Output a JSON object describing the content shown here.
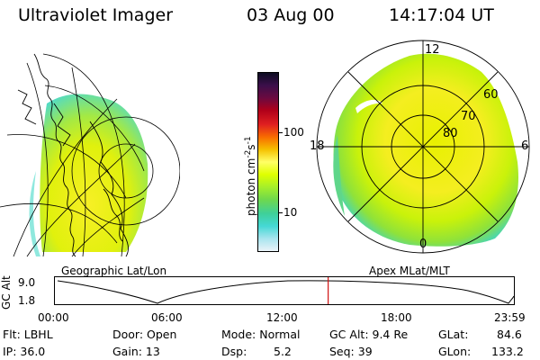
{
  "header": {
    "title": "Ultraviolet Imager",
    "date": "03 Aug 00",
    "time": "14:17:04 UT"
  },
  "left_panel": {
    "caption": "Geographic Lat/Lon"
  },
  "right_panel": {
    "caption": "Apex MLat/MLT",
    "mlt_labels": [
      "12",
      "18",
      "6",
      "0"
    ],
    "mlat_labels": [
      "60",
      "70",
      "80"
    ]
  },
  "colorbar": {
    "label": "photon cm",
    "label_sup1": "-2",
    "label_mid": "s",
    "label_sup2": "-1",
    "ticks": [
      "100",
      "10"
    ],
    "colors": [
      "#0d0d22",
      "#3b0f4a",
      "#6a0a40",
      "#b0001a",
      "#e02020",
      "#f86c00",
      "#f5c000",
      "#ffff66",
      "#dfff00",
      "#a6ef2a",
      "#6fd84c",
      "#3ed09a",
      "#45d8d5",
      "#a8e4ee",
      "#eaf3f8"
    ]
  },
  "timeline": {
    "ylabel": "GC Alt",
    "y_top": "9.0",
    "y_bottom": "1.8",
    "x_labels": [
      "00:00",
      "06:00",
      "12:00",
      "18:00",
      "23:59"
    ],
    "current_fraction": 0.595,
    "marker_color": "#d01010"
  },
  "status": {
    "flt": "Flt: LBHL",
    "door": "Door: Open",
    "mode": "Mode: Normal",
    "gc_alt": "GC Alt: 9.4 Re",
    "glat": "GLat:",
    "glat_val": "84.6",
    "ip": "IP: 36.0",
    "gain": "Gain: 13",
    "dsp": "Dsp:",
    "dsp_val": "5.2",
    "seq": "Seq: 39",
    "glon": "GLon:",
    "glon_val": "133.2"
  }
}
